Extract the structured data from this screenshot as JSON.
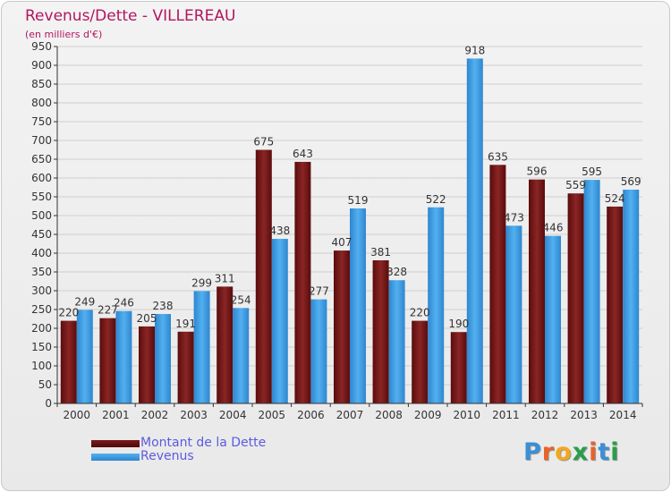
{
  "header": {
    "title": "Revenus/Dette - VILLEREAU",
    "subtitle": "(en milliers d'€)"
  },
  "logo": {
    "text": "Proxiti"
  },
  "colors": {
    "dette": "#7d1a1a",
    "revenus": "#3a9be0",
    "text": "#333333",
    "title": "#b2165f",
    "legend_text": "#5b5be0"
  },
  "chart_data": {
    "type": "bar",
    "title": "Revenus/Dette - VILLEREAU",
    "subtitle": "(en milliers d'€)",
    "categories": [
      "2000",
      "2001",
      "2002",
      "2003",
      "2004",
      "2005",
      "2006",
      "2007",
      "2008",
      "2009",
      "2010",
      "2011",
      "2012",
      "2013",
      "2014"
    ],
    "series": [
      {
        "name": "Montant de la Dette",
        "values": [
          220,
          227,
          205,
          191,
          311,
          675,
          643,
          407,
          381,
          220,
          190,
          635,
          596,
          559,
          524
        ]
      },
      {
        "name": "Revenus",
        "values": [
          249,
          246,
          238,
          299,
          254,
          438,
          277,
          519,
          328,
          522,
          918,
          473,
          446,
          595,
          569
        ]
      }
    ],
    "ylim": [
      0,
      950
    ],
    "ytick_step": 50,
    "grid": true,
    "legend": "bottom-left"
  }
}
